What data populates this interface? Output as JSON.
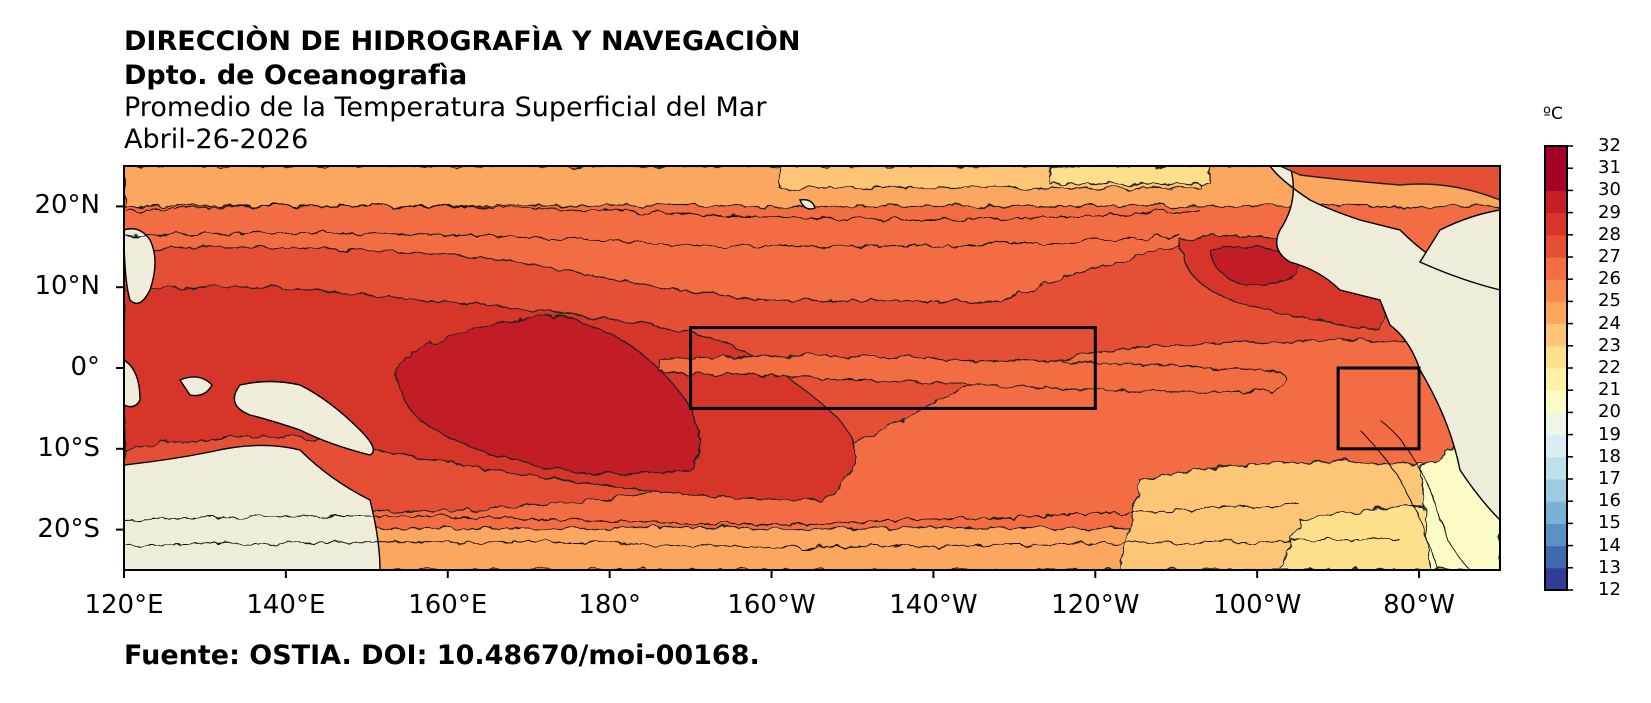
{
  "header": {
    "institution": "DIRECCIÒN DE HIDROGRAFÌA Y NAVEGACIÒN",
    "department": "Dpto. de Oceanografìa",
    "product": "Promedio de la Temperatura Superficial del Mar",
    "date": "Abril-26-2026"
  },
  "footer": {
    "source": "Fuente: OSTIA. DOI: 10.48670/moi-00168."
  },
  "map": {
    "x_ticks": [
      "120°E",
      "140°E",
      "160°E",
      "180°",
      "160°W",
      "140°W",
      "120°W",
      "100°W",
      "80°W"
    ],
    "y_ticks": [
      "20°N",
      "10°N",
      "0°",
      "10°S",
      "20°S"
    ],
    "lon_range": [
      120,
      290
    ],
    "lat_range": [
      -25,
      25
    ],
    "boxes": [
      {
        "name": "nino-3.4-region",
        "lon": [
          190,
          240
        ],
        "lat": [
          -5,
          5
        ]
      },
      {
        "name": "nino-1+2-region",
        "lon": [
          270,
          280
        ],
        "lat": [
          -10,
          0
        ]
      }
    ],
    "colors": {
      "land": "#efecda",
      "outline": "#000000"
    }
  },
  "colorbar": {
    "unit": "ºC",
    "min": 12,
    "max": 32,
    "labels": [
      "32",
      "31",
      "30",
      "29",
      "28",
      "27",
      "26",
      "25",
      "24",
      "23",
      "22",
      "21",
      "20",
      "19",
      "18",
      "17",
      "16",
      "15",
      "14",
      "13",
      "12"
    ],
    "colors": [
      "#323d97",
      "#4069ad",
      "#5b92c3",
      "#7bb1d4",
      "#9ccbe3",
      "#bde0ed",
      "#daedf3",
      "#edf7e8",
      "#fafbc5",
      "#fef0a6",
      "#fedf8c",
      "#fdc576",
      "#fca75e",
      "#f98a4d",
      "#f26d43",
      "#e54f35",
      "#d63529",
      "#c21f27",
      "#a50026",
      "#a50026"
    ]
  }
}
